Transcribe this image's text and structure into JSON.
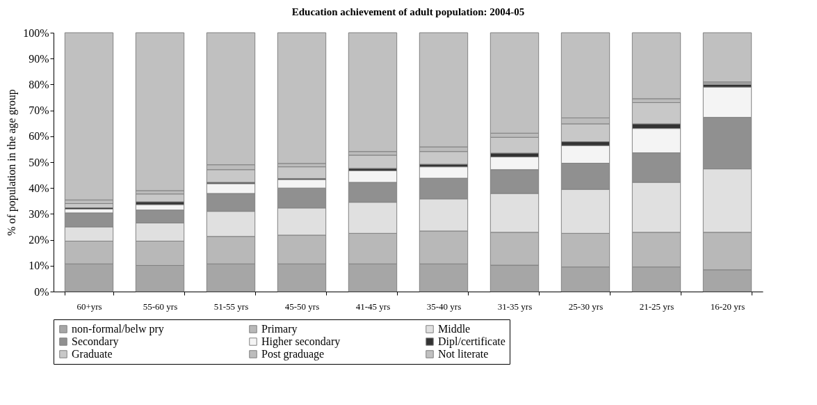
{
  "chart_data": {
    "type": "bar",
    "stacked": true,
    "title": "Education achievement of adult population: 2004-05",
    "ylabel": "% of population in the age group",
    "categories": [
      "60+yrs",
      "55-60 yrs",
      "51-55 yrs",
      "45-50 yrs",
      "41-45 yrs",
      "35-40 yrs",
      "31-35 yrs",
      "25-30 yrs",
      "21-25 yrs",
      "16-20 yrs"
    ],
    "series": [
      {
        "name": "non-formal/belw pry",
        "color": "#a6a6a6",
        "values": [
          10.7,
          10.1,
          10.7,
          10.7,
          10.7,
          10.7,
          10.2,
          9.5,
          9.5,
          8.4
        ]
      },
      {
        "name": "Primary",
        "color": "#b8b8b8",
        "values": [
          8.8,
          9.4,
          10.6,
          11.1,
          11.8,
          12.7,
          12.7,
          13.0,
          13.4,
          14.5
        ]
      },
      {
        "name": "Middle",
        "color": "#e0e0e0",
        "values": [
          5.5,
          7.0,
          9.7,
          10.5,
          12.0,
          12.4,
          15.0,
          17.0,
          19.3,
          24.5
        ]
      },
      {
        "name": "Secondary",
        "color": "#909090",
        "values": [
          5.4,
          5.0,
          6.9,
          7.7,
          7.7,
          8.0,
          9.2,
          10.1,
          11.4,
          19.9
        ]
      },
      {
        "name": "Higher secondary",
        "color": "#f4f4f4",
        "values": [
          1.5,
          2.1,
          3.8,
          3.3,
          4.5,
          4.4,
          4.9,
          6.8,
          9.4,
          11.7
        ]
      },
      {
        "name": "Dipl/certificate",
        "color": "#333333",
        "values": [
          0.5,
          1.1,
          0.5,
          0.4,
          0.9,
          1.0,
          1.5,
          1.5,
          1.8,
          1.0
        ]
      },
      {
        "name": "Graduate",
        "color": "#c8c8c8",
        "values": [
          1.6,
          3.0,
          4.9,
          4.5,
          5.1,
          4.9,
          6.1,
          6.9,
          8.2,
          0.5
        ]
      },
      {
        "name": "Post graduage",
        "color": "#bcbcbc",
        "values": [
          1.4,
          1.3,
          1.9,
          1.3,
          1.4,
          1.8,
          1.6,
          2.3,
          1.5,
          0.5
        ]
      },
      {
        "name": "Not literate",
        "color": "#c0c0c0",
        "values": [
          64.6,
          61.0,
          51.0,
          50.5,
          45.9,
          44.1,
          38.8,
          32.9,
          25.5,
          19.0
        ]
      }
    ],
    "ylim": [
      0,
      100
    ],
    "yticks": [
      {
        "value": 0,
        "label": "0%"
      },
      {
        "value": 10,
        "label": "10%"
      },
      {
        "value": 20,
        "label": "20%"
      },
      {
        "value": 30,
        "label": "30%"
      },
      {
        "value": 40,
        "label": "40%"
      },
      {
        "value": 50,
        "label": "50%"
      },
      {
        "value": 60,
        "label": "60%"
      },
      {
        "value": 70,
        "label": "70%"
      },
      {
        "value": 80,
        "label": "80%"
      },
      {
        "value": 90,
        "label": "90%"
      },
      {
        "value": 100,
        "label": "100%"
      }
    ],
    "legend": "bottom",
    "grid": false
  }
}
